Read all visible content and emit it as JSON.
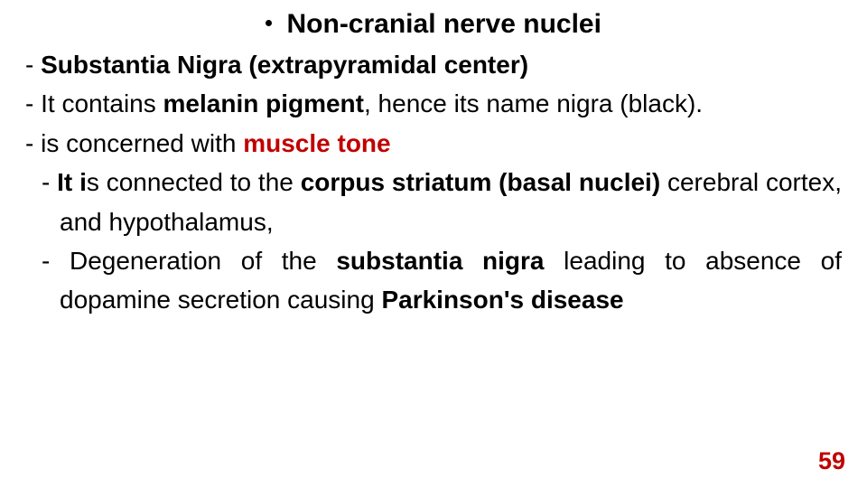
{
  "colors": {
    "background": "#ffffff",
    "text": "#000000",
    "accent_red": "#c00000",
    "bullet": "#000000"
  },
  "typography": {
    "title_fontsize_pt": 22,
    "body_fontsize_pt": 21,
    "pagenum_fontsize_pt": 20,
    "font_family": "Arial",
    "line_height": 1.55
  },
  "title": {
    "bullet": true,
    "text": "Non-cranial nerve nuclei",
    "bold": true
  },
  "lines": [
    {
      "prefix": "- ",
      "runs": [
        {
          "text": "Substantia Nigra (extrapyramidal center)",
          "style": "bold"
        }
      ]
    },
    {
      "prefix": "- It contains ",
      "runs": [
        {
          "text": "melanin pigment",
          "style": "bold"
        },
        {
          "text": ", hence its name nigra (black).",
          "style": "normal"
        }
      ]
    },
    {
      "prefix": "-  is concerned with ",
      "runs": [
        {
          "text": "muscle tone",
          "style": "red-bold"
        }
      ]
    },
    {
      "prefix": "-  ",
      "justify": true,
      "runs": [
        {
          "text": "It i",
          "style": "bold"
        },
        {
          "text": "s connected to the ",
          "style": "normal"
        },
        {
          "text": "corpus striatum (basal nuclei) ",
          "style": "bold"
        },
        {
          "text": "cerebral cortex, and hypothalamus,",
          "style": "normal"
        }
      ]
    },
    {
      "prefix": "-  ",
      "justify": true,
      "runs": [
        {
          "text": "Degeneration of the ",
          "style": "normal"
        },
        {
          "text": "substantia nigra",
          "style": "bold"
        },
        {
          "text": " leading to absence of dopamine secretion causing ",
          "style": "normal"
        },
        {
          "text": "Parkinson's disease",
          "style": "bold"
        }
      ]
    }
  ],
  "page_number": "59"
}
